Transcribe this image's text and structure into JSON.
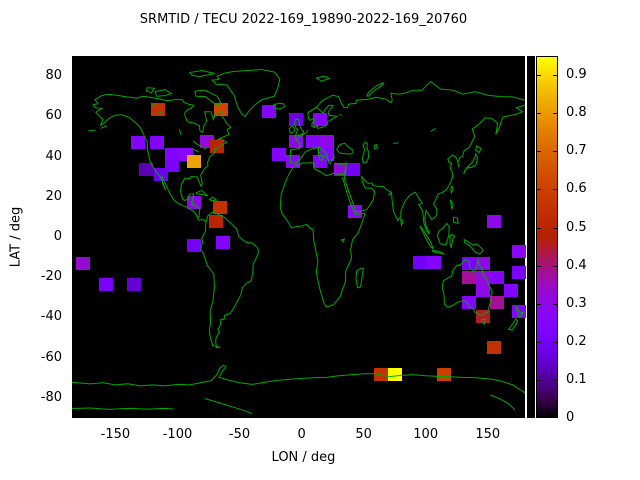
{
  "title": "SRMTID / TECU 2022-169_19890-2022-169_20760",
  "axes": {
    "xlabel": "LON / deg",
    "ylabel": "LAT / deg",
    "x_ticks": [
      -150,
      -100,
      -50,
      0,
      50,
      100,
      150
    ],
    "y_ticks": [
      80,
      60,
      40,
      20,
      0,
      -20,
      -40,
      -60,
      -80
    ],
    "xlim": [
      -185,
      180
    ],
    "ylim": [
      -90,
      90
    ]
  },
  "colorbar": {
    "min": 0,
    "max": 0.95,
    "ticks": [
      0,
      0.1,
      0.2,
      0.3,
      0.4,
      0.5,
      0.6,
      0.7,
      0.8,
      0.9
    ],
    "palette": "gnuplot black-purple-red-orange-yellow"
  },
  "colors": {
    "background": "#ffffff",
    "map_background": "#000000",
    "coastline": "#00aa00",
    "text": "#000000"
  },
  "chart_data": {
    "type": "heatmap",
    "title": "SRMTID / TECU 2022-169_19890-2022-169_20760",
    "xlabel": "LON / deg",
    "ylabel": "LAT / deg",
    "colormap": "gnuplot (black to purple to red to orange to yellow)",
    "value_range": [
      0,
      0.95
    ],
    "cell_size_deg": {
      "lon": 11.3,
      "lat": 6.5
    },
    "points": [
      {
        "lon": -115.4,
        "lat": 63.2,
        "value": 0.55
      },
      {
        "lon": -64.7,
        "lat": 63.2,
        "value": 0.62
      },
      {
        "lon": -26.1,
        "lat": 62.2,
        "value": 0.25
      },
      {
        "lon": -4.4,
        "lat": 58.2,
        "value": 0.17
      },
      {
        "lon": 14.9,
        "lat": 58.2,
        "value": 0.25
      },
      {
        "lon": -132.2,
        "lat": 47.2,
        "value": 0.25
      },
      {
        "lon": -116.2,
        "lat": 47.2,
        "value": 0.25
      },
      {
        "lon": -76.0,
        "lat": 47.7,
        "value": 0.32
      },
      {
        "lon": -67.9,
        "lat": 44.8,
        "value": 0.5
      },
      {
        "lon": -4.4,
        "lat": 47.7,
        "value": 0.3
      },
      {
        "lon": 9.2,
        "lat": 47.7,
        "value": 0.25
      },
      {
        "lon": 20.5,
        "lat": 47.7,
        "value": 0.3
      },
      {
        "lon": 20.5,
        "lat": 40.8,
        "value": 0.25
      },
      {
        "lon": -18.1,
        "lat": 40.8,
        "value": 0.25
      },
      {
        "lon": -6.8,
        "lat": 37.3,
        "value": 0.28
      },
      {
        "lon": 14.9,
        "lat": 37.3,
        "value": 0.25
      },
      {
        "lon": 31.8,
        "lat": 33.8,
        "value": 0.32
      },
      {
        "lon": 41.4,
        "lat": 33.8,
        "value": 0.2
      },
      {
        "lon": -104.1,
        "lat": 40.8,
        "value": 0.25
      },
      {
        "lon": -92.8,
        "lat": 40.8,
        "value": 0.27
      },
      {
        "lon": -104.1,
        "lat": 35.8,
        "value": 0.22
      },
      {
        "lon": -86.4,
        "lat": 37.3,
        "value": 0.82
      },
      {
        "lon": -125.8,
        "lat": 33.8,
        "value": 0.12
      },
      {
        "lon": -113.7,
        "lat": 31.3,
        "value": 0.18
      },
      {
        "lon": -86.4,
        "lat": 17.4,
        "value": 0.3
      },
      {
        "lon": -66.0,
        "lat": 14.5,
        "value": 0.55
      },
      {
        "lon": -69.0,
        "lat": 7.5,
        "value": 0.5
      },
      {
        "lon": 43.0,
        "lat": 12.9,
        "value": 0.28
      },
      {
        "lon": 154.7,
        "lat": 7.5,
        "value": 0.3
      },
      {
        "lon": -86.4,
        "lat": -4.0,
        "value": 0.2
      },
      {
        "lon": -63.1,
        "lat": -2.5,
        "value": 0.25
      },
      {
        "lon": -176.4,
        "lat": -13.4,
        "value": 0.33
      },
      {
        "lon": -158.0,
        "lat": -23.4,
        "value": 0.22
      },
      {
        "lon": -135.4,
        "lat": -23.4,
        "value": 0.15
      },
      {
        "lon": 95.3,
        "lat": -12.9,
        "value": 0.2
      },
      {
        "lon": 106.5,
        "lat": -12.9,
        "value": 0.25
      },
      {
        "lon": 134.6,
        "lat": -13.4,
        "value": 0.22
      },
      {
        "lon": 145.9,
        "lat": -13.4,
        "value": 0.3
      },
      {
        "lon": 174.8,
        "lat": -7.0,
        "value": 0.28
      },
      {
        "lon": 174.8,
        "lat": -17.4,
        "value": 0.22
      },
      {
        "lon": 134.6,
        "lat": -19.9,
        "value": 0.38
      },
      {
        "lon": 145.9,
        "lat": -19.9,
        "value": 0.32
      },
      {
        "lon": 157.2,
        "lat": -19.9,
        "value": 0.25
      },
      {
        "lon": 145.9,
        "lat": -26.4,
        "value": 0.3
      },
      {
        "lon": 168.4,
        "lat": -26.4,
        "value": 0.25
      },
      {
        "lon": 134.6,
        "lat": -32.8,
        "value": 0.25
      },
      {
        "lon": 157.2,
        "lat": -32.8,
        "value": 0.38
      },
      {
        "lon": 145.9,
        "lat": -39.3,
        "value": 0.45
      },
      {
        "lon": 174.8,
        "lat": -36.8,
        "value": 0.25
      },
      {
        "lon": 154.8,
        "lat": -54.7,
        "value": 0.55
      },
      {
        "lon": 63.9,
        "lat": -68.6,
        "value": 0.55
      },
      {
        "lon": 75.2,
        "lat": -68.6,
        "value": 0.95
      },
      {
        "lon": 114.6,
        "lat": -68.6,
        "value": 0.6
      }
    ]
  }
}
